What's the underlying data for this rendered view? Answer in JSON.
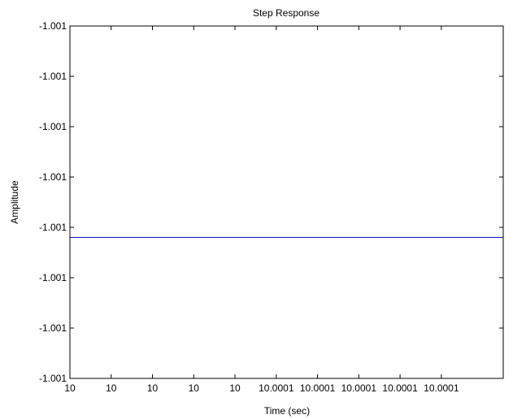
{
  "chart_data": {
    "type": "line",
    "title": "Step Response",
    "xlabel": "Time (sec)",
    "ylabel": "Amplitude",
    "x_tick_labels": [
      "10",
      "10",
      "10",
      "10",
      "10",
      "10.0001",
      "10.0001",
      "10.0001",
      "10.0001",
      "10.0001"
    ],
    "y_tick_labels": [
      "-1.001",
      "-1.001",
      "-1.001",
      "-1.001",
      "-1.001",
      "-1.001",
      "-1.001",
      "-1.001"
    ],
    "xlim": [
      0,
      10.5
    ],
    "ylim": [
      0,
      7
    ],
    "series": [
      {
        "color": "#0000cc",
        "x": [
          0,
          10.5
        ],
        "y": [
          2.8,
          2.8
        ]
      }
    ],
    "grid": false,
    "box": true
  }
}
